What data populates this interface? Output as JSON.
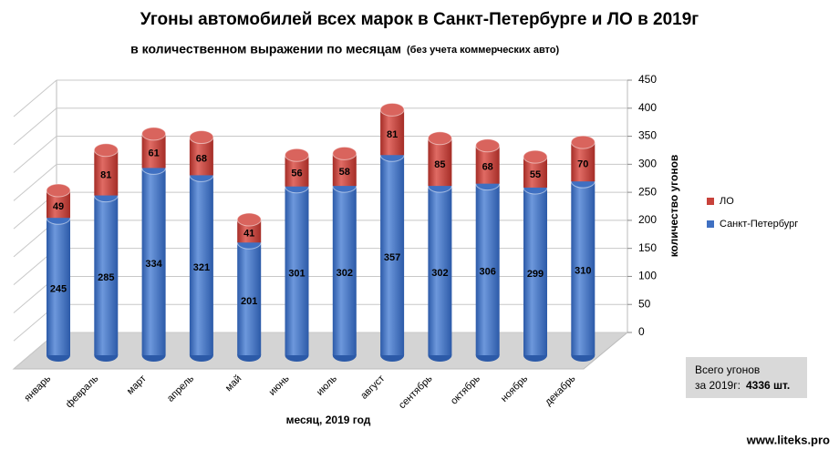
{
  "chart_data": {
    "type": "bar3d_stacked",
    "title": "Угоны автомобилей всех марок в Санкт-Петербурге и ЛО в 2019г",
    "subtitle": "в количественном выражении по месяцам",
    "subtitle_note": "(без учета коммерческих авто)",
    "xlabel": "месяц, 2019 год",
    "ylabel": "количество угонов",
    "categories": [
      "январь",
      "февраль",
      "март",
      "апрель",
      "май",
      "июнь",
      "июль",
      "август",
      "сентябрь",
      "октябрь",
      "ноябрь",
      "декабрь"
    ],
    "series": [
      {
        "name": "Санкт-Петербург",
        "color": "#3f70c2",
        "values": [
          245,
          285,
          334,
          321,
          201,
          301,
          302,
          357,
          302,
          306,
          299,
          310
        ]
      },
      {
        "name": "ЛО",
        "color": "#c8423b",
        "values": [
          49,
          81,
          61,
          68,
          41,
          56,
          58,
          81,
          85,
          68,
          55,
          70
        ]
      }
    ],
    "ylim": [
      0,
      450
    ],
    "yticks": [
      0,
      50,
      100,
      150,
      200,
      250,
      300,
      350,
      400,
      450
    ],
    "grid": true,
    "legend": "right",
    "total_box": {
      "line1": "Всего угонов",
      "line2": "за 2019г:",
      "value": "4336 шт."
    },
    "website": "www.liteks.pro"
  }
}
